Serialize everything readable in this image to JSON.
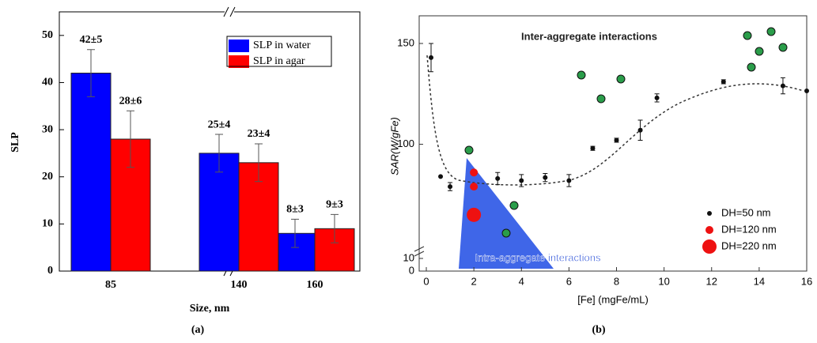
{
  "chart_data": [
    {
      "type": "bar",
      "caption": "(a)",
      "x_label": "Size, nm",
      "y_label": "SLP",
      "categories": [
        "85",
        "140",
        "160"
      ],
      "series": [
        {
          "name": "SLP in water",
          "color": "#0000ff",
          "values": [
            42,
            25,
            8
          ],
          "errors": [
            5,
            4,
            3
          ],
          "value_labels": [
            "42±5",
            "25±4",
            "8±3"
          ]
        },
        {
          "name": "SLP in agar",
          "color": "#ff0000",
          "values": [
            28,
            23,
            9
          ],
          "errors": [
            6,
            4,
            3
          ],
          "value_labels": [
            "28±6",
            "23±4",
            "9±3"
          ]
        }
      ],
      "ylim": [
        0,
        55
      ],
      "yticks": [
        0,
        10,
        20,
        30,
        40,
        50
      ],
      "legend": "upper right",
      "axis_break": true
    },
    {
      "type": "scatter",
      "caption": "(b)",
      "x_label": "[Fe] (mgFe/mL)",
      "y_label": "SAR(W/gFe)",
      "annotations": [
        "Inter-aggregate interactions",
        "Intra-aggregate interactions"
      ],
      "series": [
        {
          "name": "DH=50 nm",
          "color": "#111111",
          "size": 3,
          "x": [
            0.2,
            0.6,
            1,
            3,
            4,
            5,
            6,
            7,
            8,
            9,
            9.7,
            12.5,
            15,
            16
          ],
          "values": [
            143,
            84,
            79,
            83,
            82,
            83.5,
            82,
            98,
            102,
            107,
            123,
            131,
            129,
            126.5
          ],
          "errors": [
            7,
            0,
            2,
            3,
            3,
            2,
            3,
            1,
            1,
            5,
            2,
            1,
            4,
            0
          ]
        },
        {
          "name": "DH=120 nm",
          "color": "#ee1111",
          "size": 5,
          "x": [
            2,
            2
          ],
          "values": [
            86,
            79
          ],
          "errors": [
            0,
            0
          ]
        },
        {
          "name": "DH=220 nm",
          "color": "#ee1111",
          "size": 9,
          "x": [
            2
          ],
          "values": [
            65
          ],
          "errors": [
            0
          ]
        }
      ],
      "xlim": [
        -0.3,
        16
      ],
      "xticks": [
        0,
        2,
        4,
        6,
        8,
        10,
        12,
        14,
        16
      ],
      "ylim": [
        0,
        150
      ],
      "y_break": [
        10,
        52
      ],
      "yticks": [
        0,
        10,
        100,
        150
      ],
      "legend": "lower right"
    }
  ]
}
